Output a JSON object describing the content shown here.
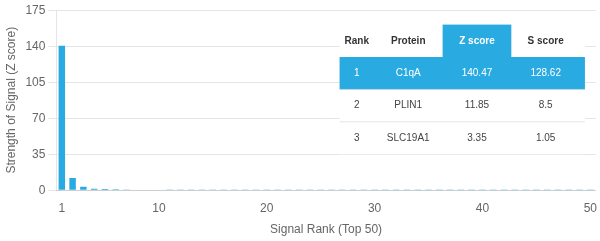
{
  "chart_data": {
    "type": "bar",
    "x": [
      1,
      2,
      3,
      4,
      5,
      6,
      7,
      8,
      9,
      10,
      11,
      12,
      13,
      14,
      15,
      16,
      17,
      18,
      19,
      20,
      21,
      22,
      23,
      24,
      25,
      26,
      27,
      28,
      29,
      30,
      31,
      32,
      33,
      34,
      35,
      36,
      37,
      38,
      39,
      40,
      41,
      42,
      43,
      44,
      45,
      46,
      47,
      48,
      49,
      50
    ],
    "values": [
      140.47,
      11.85,
      3.35,
      1.5,
      1.2,
      0.9,
      0.7,
      0.5,
      0.4,
      0.35,
      0.3,
      0.28,
      0.26,
      0.24,
      0.22,
      0.2,
      0.18,
      0.17,
      0.16,
      0.15,
      0.14,
      0.13,
      0.12,
      0.11,
      0.1,
      0.09,
      0.09,
      0.08,
      0.08,
      0.07,
      0.07,
      0.07,
      0.06,
      0.06,
      0.06,
      0.05,
      0.05,
      0.05,
      0.05,
      0.04,
      0.04,
      0.04,
      0.04,
      0.04,
      0.03,
      0.03,
      0.03,
      0.03,
      0.03,
      0.03
    ],
    "color": "#29ABE2",
    "xlabel": "Signal Rank (Top 50)",
    "ylabel": "Strength of Signal (Z score)",
    "xlim": [
      0.5,
      50.5
    ],
    "xticks": [
      1,
      10,
      20,
      30,
      40,
      50
    ],
    "ylim": [
      0,
      175
    ],
    "yticks": [
      0,
      35,
      70,
      105,
      140,
      175
    ],
    "grid": true,
    "table": [
      [
        "Rank",
        "Protein",
        "Z score",
        "S score"
      ],
      [
        "1",
        "C1qA",
        "140.47",
        "128.62"
      ],
      [
        "2",
        "PLIN1",
        "11.85",
        "8.5"
      ],
      [
        "3",
        "SLC19A1",
        "3.35",
        "1.05"
      ]
    ]
  }
}
